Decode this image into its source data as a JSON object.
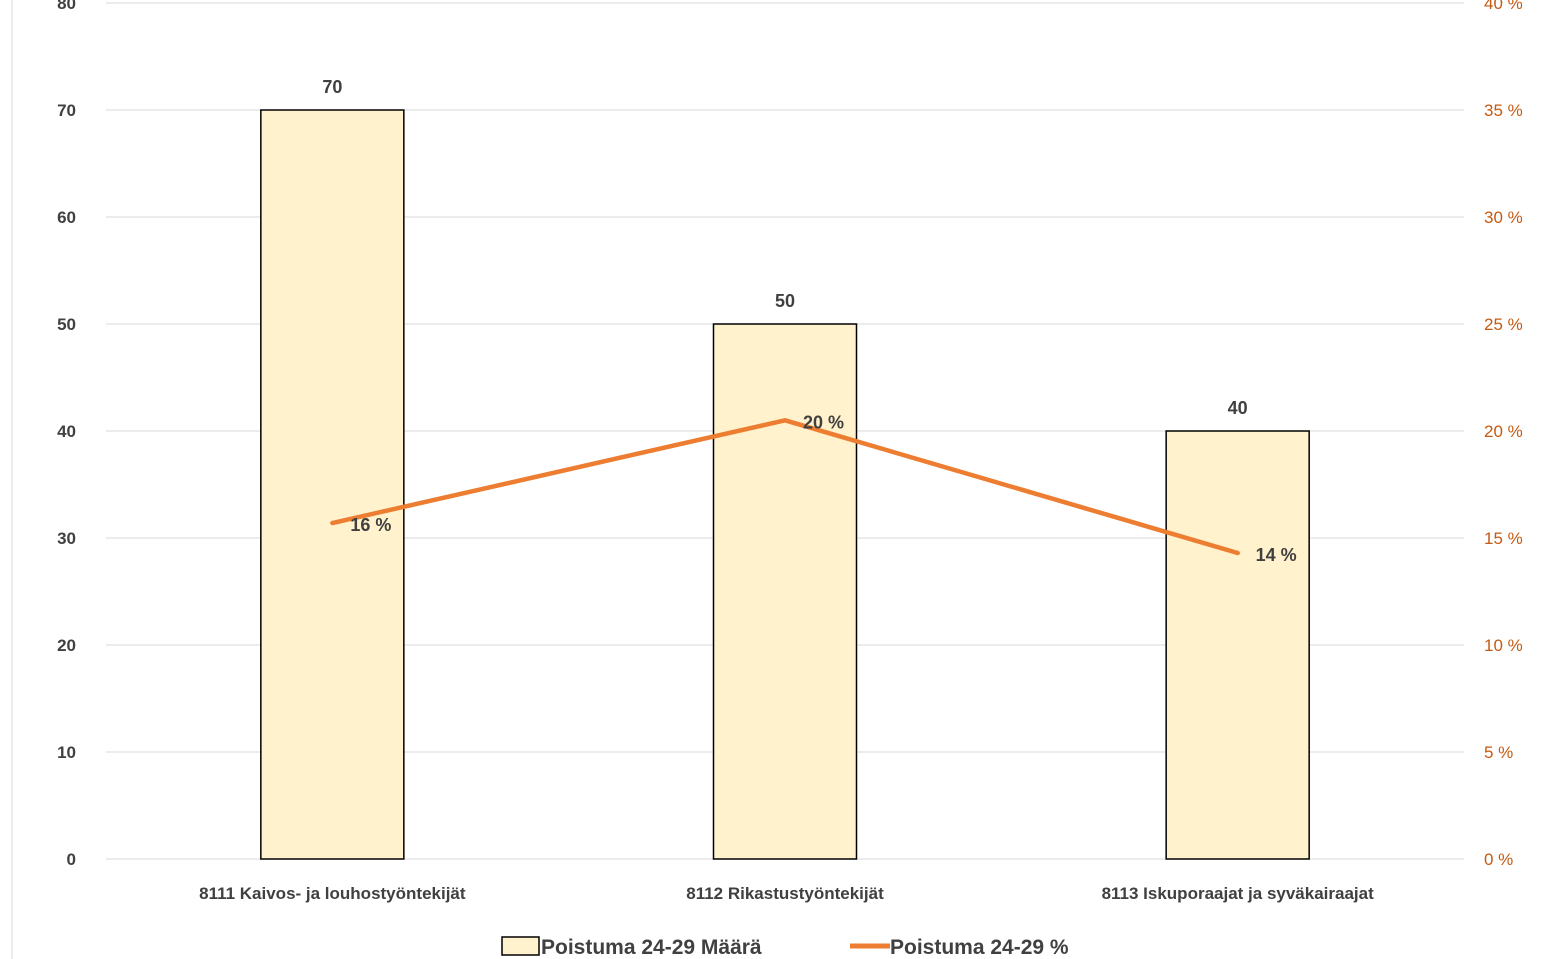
{
  "chart_data": {
    "type": "bar",
    "categories": [
      "8111 Kaivos- ja louhostyöntekijät",
      "8112 Rikastustyöntekijät",
      "8113 Iskuporaajat ja syväkairaajat"
    ],
    "series": [
      {
        "name": "Poistuma 24-29 Määrä",
        "type": "bar",
        "axis": "left",
        "values": [
          70,
          50,
          40
        ],
        "value_labels": [
          "70",
          "50",
          "40"
        ],
        "color": "#FFF2CC",
        "border_color": "#000000"
      },
      {
        "name": "Poistuma 24-29 %",
        "type": "line",
        "axis": "right",
        "values": [
          15.7,
          20.5,
          14.3
        ],
        "value_labels": [
          "16 %",
          "20 %",
          "14 %"
        ],
        "color": "#ED7D31"
      }
    ],
    "y_left": {
      "min": 0,
      "max": 80,
      "ticks": [
        0,
        10,
        20,
        30,
        40,
        50,
        60,
        70,
        80
      ],
      "tick_labels": [
        "0",
        "10",
        "20",
        "30",
        "40",
        "50",
        "60",
        "70",
        "80"
      ]
    },
    "y_right": {
      "min": 0,
      "max": 40,
      "ticks": [
        0,
        5,
        10,
        15,
        20,
        25,
        30,
        35,
        40
      ],
      "tick_labels": [
        "0 %",
        "5 %",
        "10 %",
        "15 %",
        "20 %",
        "25 %",
        "30 %",
        "35 %",
        "40 %"
      ],
      "color": "#C55A11"
    },
    "grid": true,
    "legend_position": "bottom",
    "title": "",
    "xlabel": "",
    "ylabel": ""
  }
}
